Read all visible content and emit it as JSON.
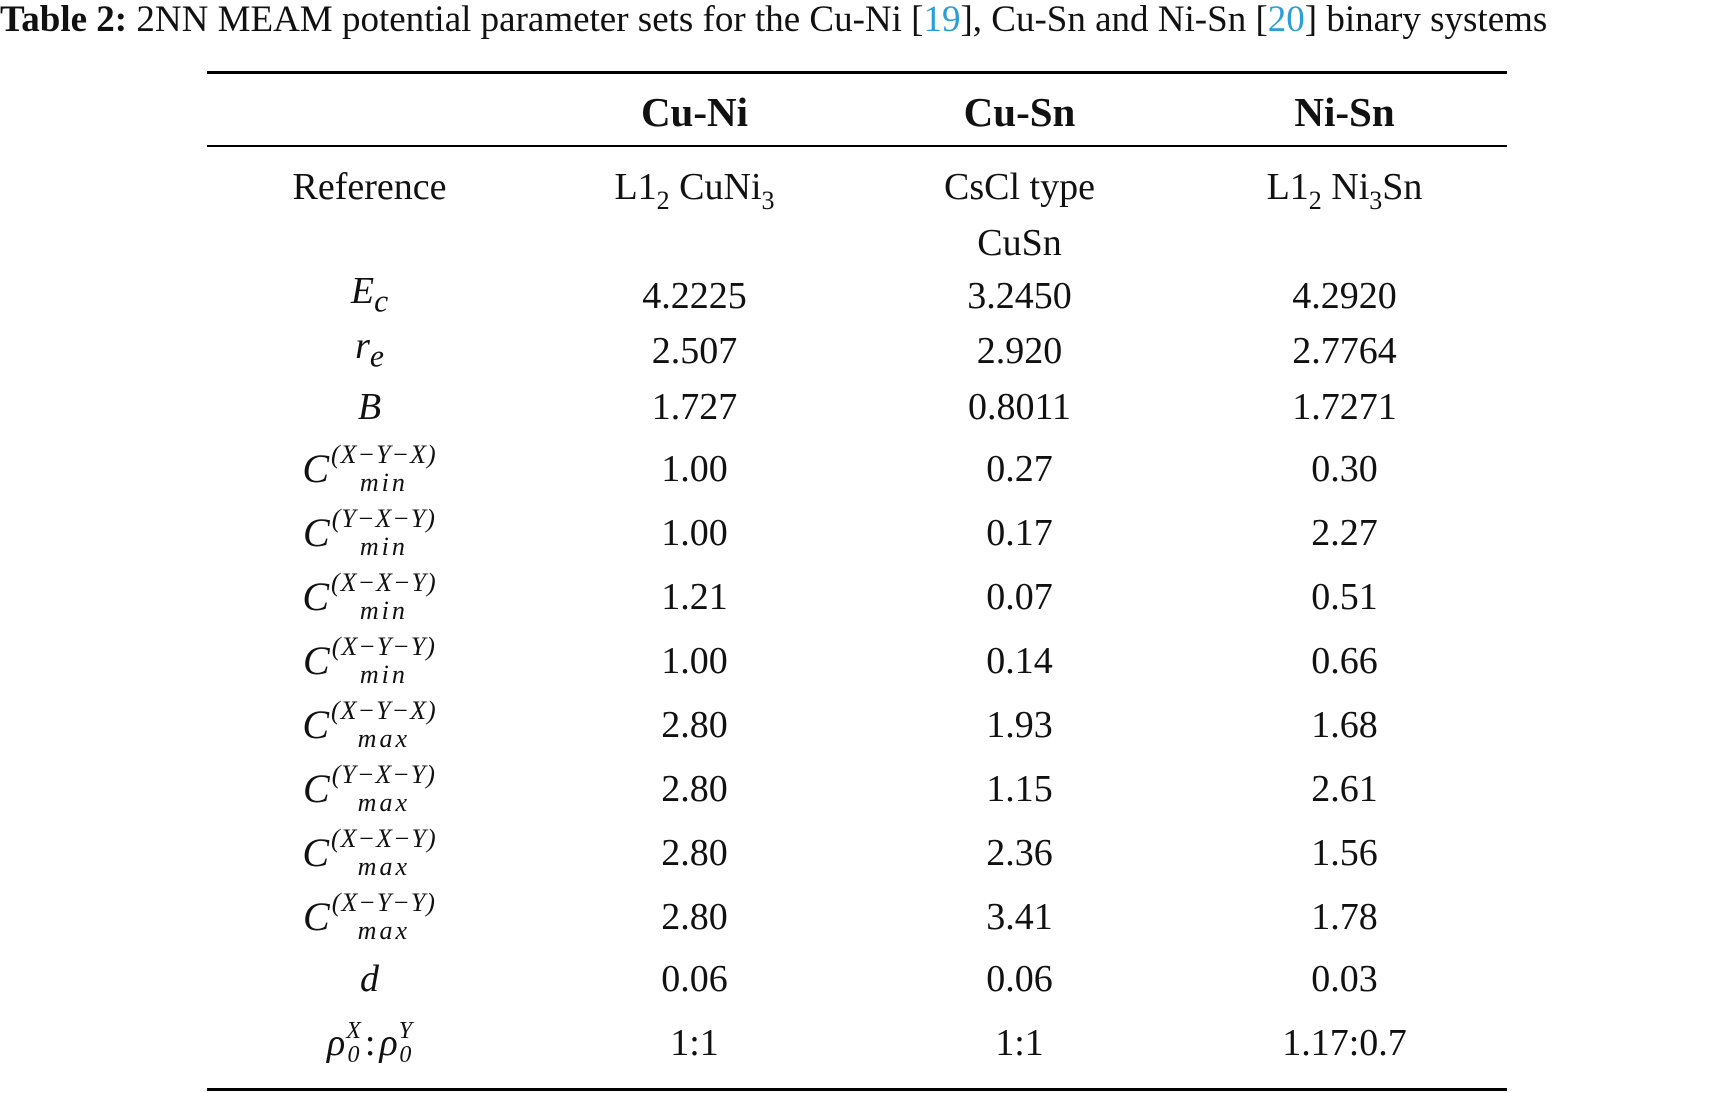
{
  "caption": {
    "label": "Table 2:",
    "text_a": " 2NN MEAM potential parameter sets for the Cu-Ni [",
    "ref1": "19",
    "text_b": "], Cu-Sn and Ni-Sn [",
    "ref2": "20",
    "text_c": "] binary systems"
  },
  "columns": [
    "",
    "Cu-Ni",
    "Cu-Sn",
    "Ni-Sn"
  ],
  "rows": [
    {
      "label": "Reference",
      "values": [
        "L1",
        "CsCl type",
        "L1"
      ]
    },
    {
      "label": "Ec",
      "values": [
        "4.2225",
        "3.2450",
        "4.2920"
      ]
    },
    {
      "label": "re",
      "values": [
        "2.507",
        "2.920",
        "2.7764"
      ]
    },
    {
      "label": "B",
      "values": [
        "1.727",
        "0.8011",
        "1.7271"
      ]
    },
    {
      "label": "Cmin(X-Y-X)",
      "values": [
        "1.00",
        "0.27",
        "0.30"
      ]
    },
    {
      "label": "Cmin(Y-X-Y)",
      "values": [
        "1.00",
        "0.17",
        "2.27"
      ]
    },
    {
      "label": "Cmin(X-X-Y)",
      "values": [
        "1.21",
        "0.07",
        "0.51"
      ]
    },
    {
      "label": "Cmin(X-Y-Y)",
      "values": [
        "1.00",
        "0.14",
        "0.66"
      ]
    },
    {
      "label": "Cmax(X-Y-X)",
      "values": [
        "2.80",
        "1.93",
        "1.68"
      ]
    },
    {
      "label": "Cmax(Y-X-Y)",
      "values": [
        "2.80",
        "1.15",
        "2.61"
      ]
    },
    {
      "label": "Cmax(X-X-Y)",
      "values": [
        "2.80",
        "2.36",
        "1.56"
      ]
    },
    {
      "label": "Cmax(X-Y-Y)",
      "values": [
        "2.80",
        "3.41",
        "1.78"
      ]
    },
    {
      "label": "d",
      "values": [
        "0.06",
        "0.06",
        "0.03"
      ]
    },
    {
      "label": "ρ0X:ρ0Y",
      "values": [
        "1:1",
        "1:1",
        "1.17:0.7"
      ]
    }
  ],
  "reference_detail": {
    "cuni_sub": "2",
    "cuni_tail": " CuNi",
    "cuni_sub2": "3",
    "cusn_line2": "CuSn",
    "nisn_sub": "2",
    "nisn_tail": " Ni",
    "nisn_sub2": "3",
    "nisn_tail2": "Sn"
  },
  "symbols": {
    "E": "E",
    "E_sub": "c",
    "r": "r",
    "r_sub": "e",
    "B": "B",
    "C": "C",
    "min": "min",
    "max": "max",
    "d": "d",
    "rho": "ρ",
    "zero": "0",
    "X": "X",
    "Y": "Y",
    "colon": ":"
  },
  "superscripts": [
    "(X−Y−X)",
    "(Y−X−Y)",
    "(X−X−Y)",
    "(X−Y−Y)"
  ]
}
